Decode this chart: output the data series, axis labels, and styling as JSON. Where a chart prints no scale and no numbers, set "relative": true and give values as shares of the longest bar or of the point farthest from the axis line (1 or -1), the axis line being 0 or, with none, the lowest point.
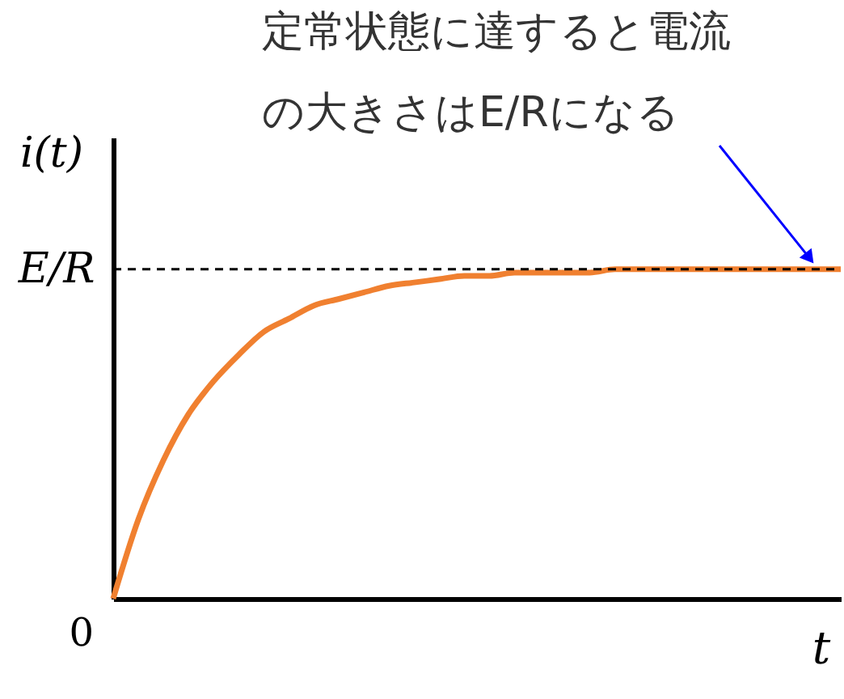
{
  "chart_data": {
    "type": "line",
    "relative": true,
    "xlabel": "t",
    "ylabel": "i(t)",
    "categories": [
      null,
      null,
      null,
      null,
      null,
      null,
      null,
      null,
      null,
      null,
      null,
      null,
      null,
      null,
      null,
      null,
      null,
      null,
      null,
      null,
      null,
      null,
      null,
      null,
      null,
      null,
      null,
      null,
      null,
      null
    ],
    "series": [
      {
        "color": "#f08030",
        "values": [
          0,
          0.24,
          0.42,
          0.56,
          0.66,
          0.74,
          0.81,
          0.85,
          0.89,
          0.91,
          0.93,
          0.95,
          0.96,
          0.97,
          0.98,
          0.98,
          0.99,
          0.99,
          0.99,
          0.99,
          1,
          1,
          1,
          1,
          1,
          1,
          1,
          1,
          1,
          1
        ]
      }
    ],
    "ref_lines": [
      {
        "axis": "y",
        "value": 1,
        "label": "E/R",
        "color": "#000000",
        "line_style": "dashed"
      }
    ],
    "annotations": [
      "定常状態に達すると電流の大きさはE/Rになる",
      "0"
    ],
    "grid": false,
    "marker": "none",
    "line_style": "solid"
  }
}
